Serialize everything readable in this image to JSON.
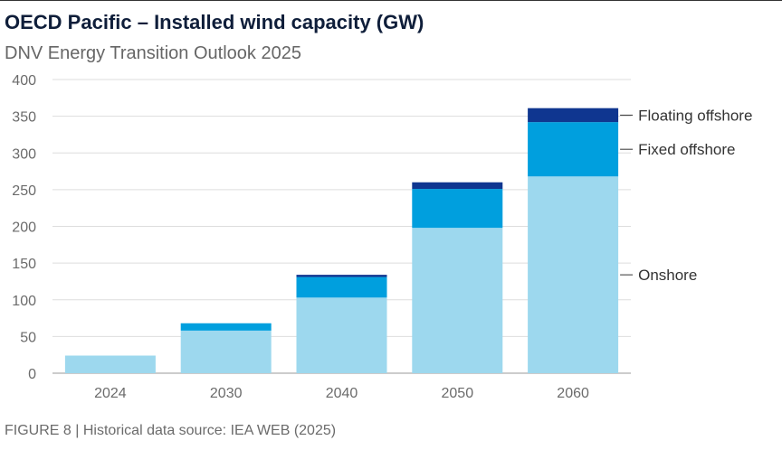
{
  "title": "OECD Pacific – Installed wind capacity (GW)",
  "subtitle": "DNV Energy Transition Outlook 2025",
  "footer": "FIGURE 8 | Historical data source: IEA WEB (2025)",
  "chart_data": {
    "type": "bar",
    "stacked": true,
    "title": "OECD Pacific – Installed wind capacity (GW)",
    "subtitle": "DNV Energy Transition Outlook 2025",
    "xlabel": "",
    "ylabel": "",
    "ylim": [
      0,
      400
    ],
    "yticks": [
      0,
      50,
      100,
      150,
      200,
      250,
      300,
      350,
      400
    ],
    "grid": true,
    "legend": "right, labels beside last bar",
    "categories": [
      "2024",
      "2030",
      "2040",
      "2050",
      "2060"
    ],
    "series": [
      {
        "name": "Onshore",
        "color": "#9dd8ee",
        "values": [
          24,
          58,
          103,
          198,
          268
        ]
      },
      {
        "name": "Fixed offshore",
        "color": "#009fde",
        "values": [
          0,
          10,
          28,
          53,
          74
        ]
      },
      {
        "name": "Floating offshore",
        "color": "#0f3690",
        "values": [
          0,
          0,
          3,
          9,
          19
        ]
      }
    ]
  }
}
